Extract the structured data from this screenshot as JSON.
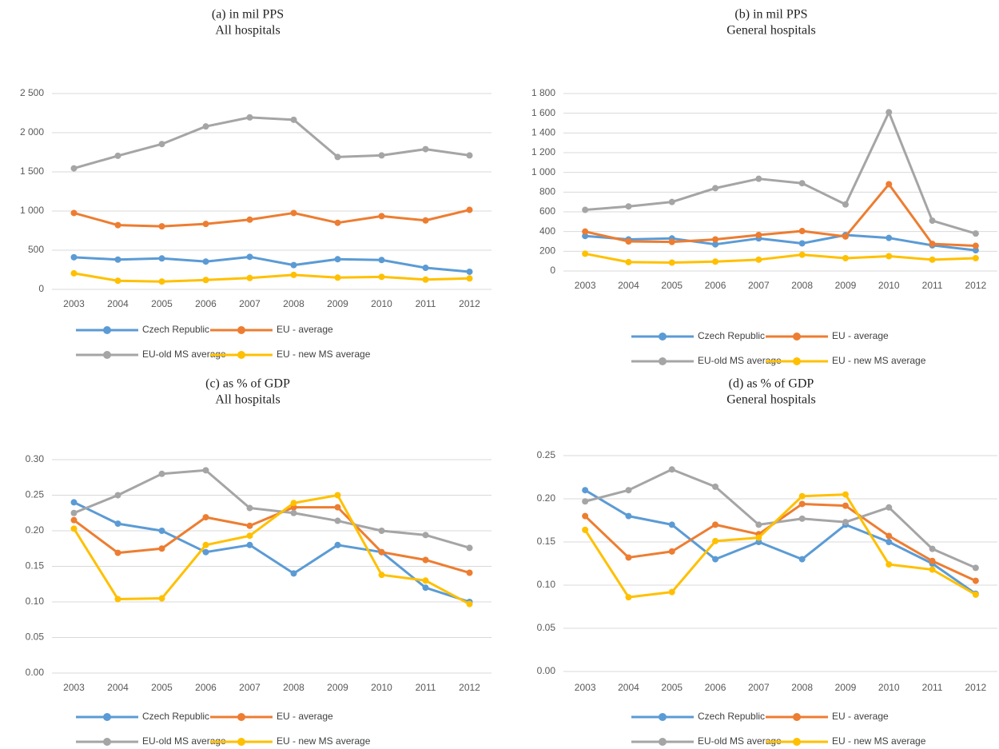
{
  "chart_data": [
    {
      "type": "line",
      "title": "(a) in mil PPS",
      "subtitle": "All hospitals",
      "categories": [
        "2003",
        "2004",
        "2005",
        "2006",
        "2007",
        "2008",
        "2009",
        "2010",
        "2011",
        "2012"
      ],
      "series": [
        {
          "name": "Czech Republic",
          "color": "#5b9bd5",
          "values": [
            410,
            380,
            395,
            355,
            415,
            310,
            385,
            375,
            275,
            225
          ]
        },
        {
          "name": "EU - average",
          "color": "#ed7d31",
          "values": [
            975,
            820,
            805,
            835,
            890,
            975,
            850,
            935,
            880,
            1015
          ]
        },
        {
          "name": "EU-old MS average",
          "color": "#a5a5a5",
          "values": [
            1545,
            1705,
            1855,
            2080,
            2195,
            2165,
            1690,
            1710,
            1790,
            1710
          ]
        },
        {
          "name": "EU - new MS average",
          "color": "#ffc000",
          "values": [
            205,
            110,
            100,
            120,
            145,
            185,
            150,
            160,
            125,
            140
          ]
        }
      ],
      "ylim": [
        0,
        2500
      ],
      "yticks": [
        0,
        500,
        {
          "value": 1000,
          "label": "1 000"
        },
        {
          "value": 1500,
          "label": "1 500"
        },
        {
          "value": 2000,
          "label": "2 000"
        },
        {
          "value": 2500,
          "label": "2 500"
        }
      ],
      "grid": true,
      "legend": "bottom"
    },
    {
      "type": "line",
      "title": "(b) in mil PPS",
      "subtitle": "General hospitals",
      "categories": [
        "2003",
        "2004",
        "2005",
        "2006",
        "2007",
        "2008",
        "2009",
        "2010",
        "2011",
        "2012"
      ],
      "series": [
        {
          "name": "Czech Republic",
          "color": "#5b9bd5",
          "values": [
            355,
            320,
            330,
            270,
            330,
            280,
            365,
            335,
            260,
            210
          ]
        },
        {
          "name": "EU - average",
          "color": "#ed7d31",
          "values": [
            400,
            300,
            295,
            320,
            365,
            405,
            350,
            880,
            275,
            255
          ]
        },
        {
          "name": "EU-old MS average",
          "color": "#a5a5a5",
          "values": [
            620,
            655,
            700,
            840,
            935,
            890,
            675,
            1610,
            510,
            380
          ]
        },
        {
          "name": "EU - new MS average",
          "color": "#ffc000",
          "values": [
            175,
            90,
            85,
            95,
            115,
            165,
            130,
            150,
            115,
            130
          ]
        }
      ],
      "ylim": [
        0,
        1800
      ],
      "yticks": [
        0,
        200,
        400,
        600,
        800,
        {
          "value": 1000,
          "label": "1 000"
        },
        {
          "value": 1200,
          "label": "1 200"
        },
        {
          "value": 1400,
          "label": "1 400"
        },
        {
          "value": 1600,
          "label": "1 600"
        },
        {
          "value": 1800,
          "label": "1 800"
        }
      ],
      "grid": true,
      "legend": "bottom"
    },
    {
      "type": "line",
      "title": "(c) as % of GDP",
      "subtitle": "All hospitals",
      "categories": [
        "2003",
        "2004",
        "2005",
        "2006",
        "2007",
        "2008",
        "2009",
        "2010",
        "2011",
        "2012"
      ],
      "series": [
        {
          "name": "Czech Republic",
          "color": "#5b9bd5",
          "values": [
            0.24,
            0.21,
            0.2,
            0.17,
            0.18,
            0.14,
            0.18,
            0.17,
            0.12,
            0.1
          ]
        },
        {
          "name": "EU - average",
          "color": "#ed7d31",
          "values": [
            0.215,
            0.169,
            0.175,
            0.219,
            0.207,
            0.233,
            0.233,
            0.17,
            0.159,
            0.141
          ]
        },
        {
          "name": "EU-old MS average",
          "color": "#a5a5a5",
          "values": [
            0.225,
            0.25,
            0.28,
            0.285,
            0.232,
            0.225,
            0.214,
            0.2,
            0.194,
            0.176
          ]
        },
        {
          "name": "EU - new MS average",
          "color": "#ffc000",
          "values": [
            0.203,
            0.104,
            0.105,
            0.18,
            0.193,
            0.239,
            0.25,
            0.138,
            0.13,
            0.097
          ]
        }
      ],
      "ylim": [
        0,
        0.3
      ],
      "yticks": [
        {
          "value": 0,
          "label": "0.00"
        },
        0.05,
        {
          "value": 0.1,
          "label": "0.10"
        },
        0.15,
        {
          "value": 0.2,
          "label": "0.20"
        },
        0.25,
        {
          "value": 0.3,
          "label": "0.30"
        }
      ],
      "grid": true,
      "legend": "bottom"
    },
    {
      "type": "line",
      "title": "(d) as % of GDP",
      "subtitle": "General hospitals",
      "categories": [
        "2003",
        "2004",
        "2005",
        "2006",
        "2007",
        "2008",
        "2009",
        "2010",
        "2011",
        "2012"
      ],
      "series": [
        {
          "name": "Czech Republic",
          "color": "#5b9bd5",
          "values": [
            0.21,
            0.18,
            0.17,
            0.13,
            0.15,
            0.13,
            0.17,
            0.15,
            0.125,
            0.09
          ]
        },
        {
          "name": "EU - average",
          "color": "#ed7d31",
          "values": [
            0.18,
            0.132,
            0.139,
            0.17,
            0.159,
            0.194,
            0.192,
            0.157,
            0.128,
            0.105
          ]
        },
        {
          "name": "EU-old MS average",
          "color": "#a5a5a5",
          "values": [
            0.197,
            0.21,
            0.234,
            0.214,
            0.17,
            0.177,
            0.173,
            0.19,
            0.142,
            0.12
          ]
        },
        {
          "name": "EU - new MS average",
          "color": "#ffc000",
          "values": [
            0.164,
            0.086,
            0.092,
            0.151,
            0.155,
            0.203,
            0.205,
            0.124,
            0.118,
            0.089
          ]
        }
      ],
      "ylim": [
        0,
        0.25
      ],
      "yticks": [
        {
          "value": 0,
          "label": "0.00"
        },
        0.05,
        {
          "value": 0.1,
          "label": "0.10"
        },
        0.15,
        {
          "value": 0.2,
          "label": "0.20"
        },
        0.25
      ],
      "grid": true,
      "legend": "bottom"
    }
  ]
}
